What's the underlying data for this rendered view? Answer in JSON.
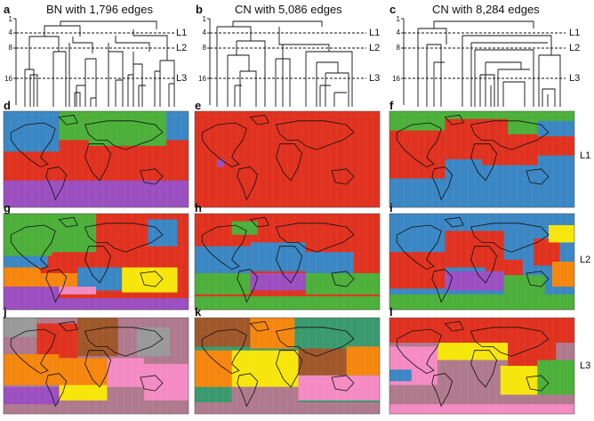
{
  "figure": {
    "dendrograms": [
      {
        "letter": "a",
        "title": "BN with 1,796 edges"
      },
      {
        "letter": "b",
        "title": "CN with 5,086 edges"
      },
      {
        "letter": "c",
        "title": "CN with 8,284 edges"
      }
    ],
    "yticks": [
      "1",
      "4",
      "8",
      "16"
    ],
    "levels": [
      "L1",
      "L2",
      "L3"
    ],
    "map_rows": [
      {
        "letters": [
          "d",
          "e",
          "f"
        ],
        "level": "L1"
      },
      {
        "letters": [
          "g",
          "h",
          "i"
        ],
        "level": "L2"
      },
      {
        "letters": [
          "j",
          "k",
          "l"
        ],
        "level": "L3"
      }
    ]
  },
  "colors": {
    "red": "#e0321f",
    "blue": "#3b87c4",
    "green": "#4cb03a",
    "purple": "#9b4fc1",
    "orange": "#f5860e",
    "yellow": "#f7e60b",
    "pink": "#f48bc3",
    "brown": "#a0572a",
    "gray": "#9a9a9a",
    "teal": "#3a9a6e",
    "mauve": "#b07a8e"
  }
}
